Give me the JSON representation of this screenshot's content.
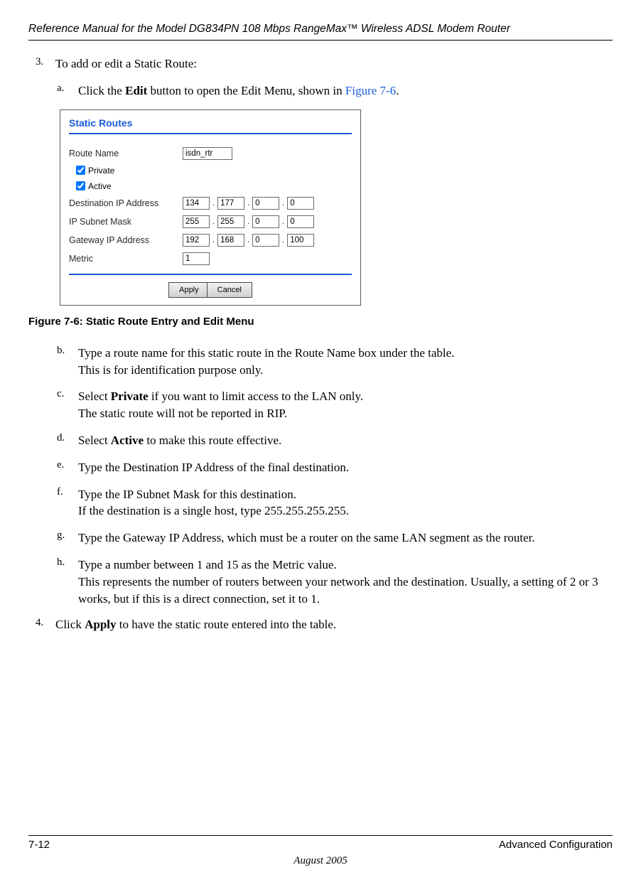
{
  "header": {
    "title": "Reference Manual for the Model DG834PN 108 Mbps RangeMax™ Wireless ADSL Modem Router"
  },
  "step3": {
    "marker": "3.",
    "text": "To add or edit a Static Route:",
    "a": {
      "marker": "a.",
      "prefix": "Click the ",
      "bold": "Edit",
      "mid": " button to open the Edit Menu, shown in ",
      "link": "Figure 7-6",
      "suffix": "."
    },
    "b": {
      "marker": "b.",
      "l1": "Type a route name for this static route in the Route Name box under the table.",
      "l2": "This is for identification purpose only."
    },
    "c": {
      "marker": "c.",
      "prefix": "Select ",
      "bold": "Private",
      "mid": " if you want to limit access to the LAN only.",
      "l2": "The static route will not be reported in RIP."
    },
    "d": {
      "marker": "d.",
      "prefix": "Select ",
      "bold": "Active",
      "suffix": " to make this route effective."
    },
    "e": {
      "marker": "e.",
      "text": "Type the Destination IP Address of the final destination."
    },
    "f": {
      "marker": "f.",
      "l1": "Type the IP Subnet Mask for this destination.",
      "l2": "If the destination is a single host, type 255.255.255.255."
    },
    "g": {
      "marker": "g.",
      "text": "Type the Gateway IP Address, which must be a router on the same LAN segment as the router."
    },
    "h": {
      "marker": "h.",
      "l1": "Type a number between 1 and 15 as the Metric value.",
      "l2": "This represents the number of routers between your network and the destination. Usually, a setting of 2 or 3 works, but if this is a direct connection, set it to 1."
    }
  },
  "step4": {
    "marker": "4.",
    "prefix": "Click ",
    "bold": "Apply",
    "suffix": " to have the static route entered into the table."
  },
  "figure": {
    "caption": "Figure 7-6:  Static Route Entry and Edit Menu",
    "panel_title": "Static Routes",
    "route_name_label": "Route Name",
    "route_name_value": "isdn_rtr",
    "private_label": "Private",
    "active_label": "Active",
    "dest_label": "Destination IP Address",
    "dest": [
      "134",
      "177",
      "0",
      "0"
    ],
    "mask_label": "IP Subnet Mask",
    "mask": [
      "255",
      "255",
      "0",
      "0"
    ],
    "gw_label": "Gateway IP Address",
    "gw": [
      "192",
      "168",
      "0",
      "100"
    ],
    "metric_label": "Metric",
    "metric_value": "1",
    "apply_btn": "Apply",
    "cancel_btn": "Cancel"
  },
  "footer": {
    "page": "7-12",
    "section": "Advanced Configuration",
    "date": "August 2005"
  },
  "colors": {
    "link": "#1a5bd8"
  }
}
